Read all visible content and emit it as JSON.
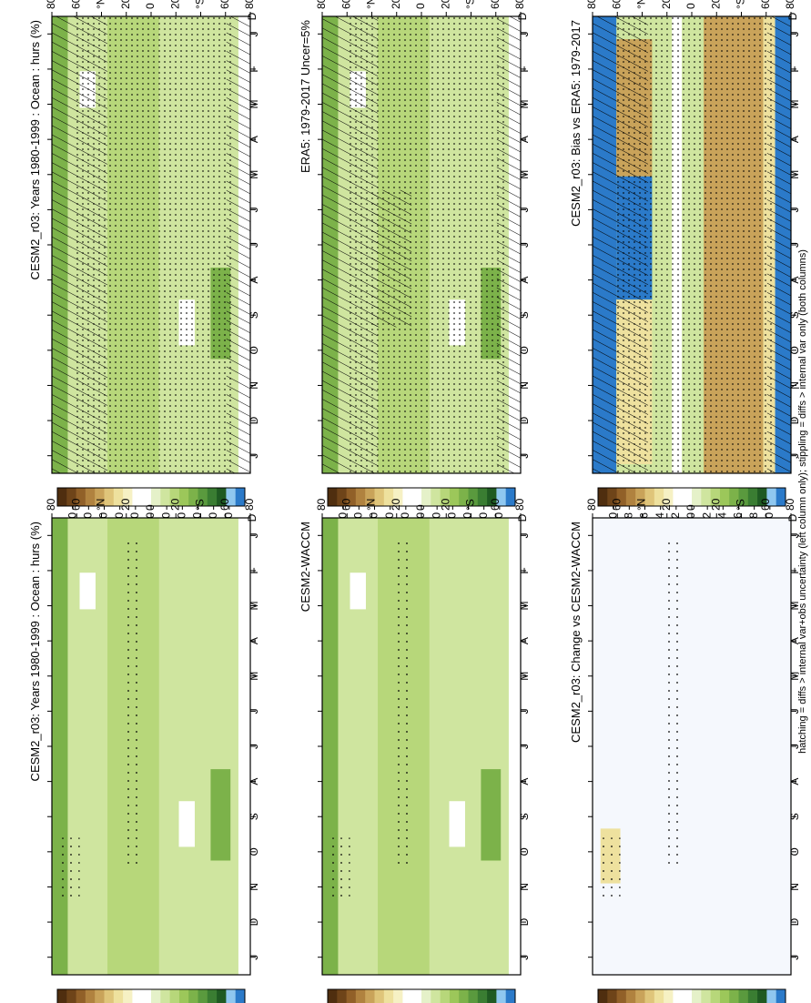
{
  "footer_note": "hatching = diffs > internal var+obs uncertainty (left column only); stippling = diffs > internal var only (both columns)",
  "chart_data": [
    {
      "id": "p00",
      "type": "heatmap",
      "title": "CESM2_r03: Years 1980-1999 : Ocean : hurs (%)",
      "x_ticks": [
        "J",
        "F",
        "M",
        "A",
        "M",
        "J",
        "J",
        "A",
        "S",
        "O",
        "N",
        "D",
        "J"
      ],
      "y_ticks": [
        "80",
        "60",
        "40",
        "20",
        "0",
        "20",
        "40",
        "60",
        "80"
      ],
      "y_ticks_special": {
        "lat40N": "°N",
        "lat40S": "°S"
      },
      "colorbar": {
        "labels": [
          "120",
          "110",
          "100",
          "90",
          "80",
          "70",
          "60",
          "50",
          "40",
          "30",
          "20"
        ]
      },
      "field": "abs",
      "hatching": true,
      "stippling": true
    },
    {
      "id": "p01",
      "type": "heatmap",
      "title": "CESM2_r03: Years 1980-1999 : Ocean : hurs (%)",
      "x_ticks": [
        "J",
        "F",
        "M",
        "A",
        "M",
        "J",
        "J",
        "A",
        "S",
        "O",
        "N",
        "D",
        "J"
      ],
      "y_ticks": [
        "80",
        "60",
        "40",
        "20",
        "0",
        "20",
        "40",
        "60",
        "80"
      ],
      "y_ticks_special": {
        "lat40N": "°N",
        "lat40S": "°S"
      },
      "colorbar": {
        "labels": [
          "120",
          "110",
          "100",
          "90",
          "80",
          "70",
          "60",
          "50",
          "40",
          "30",
          "20"
        ]
      },
      "field": "abs",
      "hatching": false,
      "stippling": true
    },
    {
      "id": "p10",
      "type": "heatmap",
      "title": "ERA5: 1979-2017 Uncer=5%",
      "x_ticks": [
        "J",
        "F",
        "M",
        "A",
        "M",
        "J",
        "J",
        "A",
        "S",
        "O",
        "N",
        "D",
        "J"
      ],
      "y_ticks": [
        "80",
        "60",
        "40",
        "20",
        "0",
        "20",
        "40",
        "60",
        "80"
      ],
      "y_ticks_special": {
        "lat40N": "°N",
        "lat40S": "°S"
      },
      "colorbar": {
        "labels": [
          "120",
          "110",
          "100",
          "90",
          "80",
          "70",
          "60",
          "50",
          "40",
          "30",
          "20"
        ]
      },
      "field": "abs",
      "hatching": true,
      "stippling": true
    },
    {
      "id": "p11",
      "type": "heatmap",
      "title": "CESM2-WACCM",
      "x_ticks": [
        "J",
        "F",
        "M",
        "A",
        "M",
        "J",
        "J",
        "A",
        "S",
        "O",
        "N",
        "D",
        "J"
      ],
      "y_ticks": [
        "80",
        "60",
        "40",
        "20",
        "0",
        "20",
        "40",
        "60",
        "80"
      ],
      "y_ticks_special": {
        "lat40N": "°N",
        "lat40S": "°S"
      },
      "colorbar": {
        "labels": [
          "120",
          "110",
          "100",
          "90",
          "80",
          "70",
          "60",
          "50",
          "40",
          "30",
          "20"
        ]
      },
      "field": "abs",
      "hatching": false,
      "stippling": true
    },
    {
      "id": "p20",
      "type": "heatmap",
      "title": "CESM2_r03: Bias vs ERA5: 1979-2017",
      "x_ticks": [
        "J",
        "F",
        "M",
        "A",
        "M",
        "J",
        "J",
        "A",
        "S",
        "O",
        "N",
        "D",
        "J"
      ],
      "y_ticks": [
        "80",
        "60",
        "40",
        "20",
        "0",
        "20",
        "40",
        "60",
        "80"
      ],
      "y_ticks_special": {
        "lat40N": "°N",
        "lat40S": "°S"
      },
      "colorbar": {
        "labels": [
          "10",
          "8",
          "6",
          "4",
          "2",
          "0",
          "-2",
          "-4",
          "-6",
          "-8",
          "-10"
        ]
      },
      "field": "bias",
      "hatching": true,
      "stippling": true
    },
    {
      "id": "p21",
      "type": "heatmap",
      "title": "CESM2_r03: Change vs CESM2-WACCM",
      "x_ticks": [
        "J",
        "F",
        "M",
        "A",
        "M",
        "J",
        "J",
        "A",
        "S",
        "O",
        "N",
        "D",
        "J"
      ],
      "y_ticks": [
        "80",
        "60",
        "40",
        "20",
        "0",
        "20",
        "40",
        "60",
        "80"
      ],
      "y_ticks_special": {
        "lat40N": "°N",
        "lat40S": "°S"
      },
      "colorbar": {
        "labels": [
          "10",
          "8",
          "6",
          "4",
          "2",
          "0",
          "-2",
          "-4",
          "-6",
          "-8",
          "-10"
        ]
      },
      "field": "change",
      "hatching": false,
      "stippling": true
    }
  ],
  "colors": {
    "cbar_abs": [
      "#2b7ac9",
      "#8fc7ef",
      "#1f5a22",
      "#3a7d32",
      "#5a9a3e",
      "#7cb24a",
      "#9cc75a",
      "#b7d77a",
      "#cfe59f",
      "#e5f1c9",
      "#ffffff",
      "#ffffff",
      "#f6f1c4",
      "#eee19e",
      "#dfc57a",
      "#c9a35a",
      "#b0823f",
      "#916028",
      "#6e4419",
      "#4f2e0f"
    ],
    "cbar_diff": [
      "#2b7ac9",
      "#8fc7ef",
      "#1f5a22",
      "#3a7d32",
      "#5a9a3e",
      "#7cb24a",
      "#9cc75a",
      "#b7d77a",
      "#cfe59f",
      "#e5f1c9",
      "#ffffff",
      "#ffffff",
      "#f6f1c4",
      "#eee19e",
      "#dfc57a",
      "#c9a35a",
      "#b0823f",
      "#916028",
      "#6e4419",
      "#4f2e0f"
    ],
    "panel_light": "#cfe59f",
    "panel_mid": "#b7d77a",
    "panel_dark": "#7cb24a",
    "panel_deep": "#3a7d32",
    "change_bg": "#f5f8fd",
    "bias_blue": "#2b7ac9",
    "bias_brown": "#c9a35a",
    "bias_tan": "#eee19e"
  }
}
